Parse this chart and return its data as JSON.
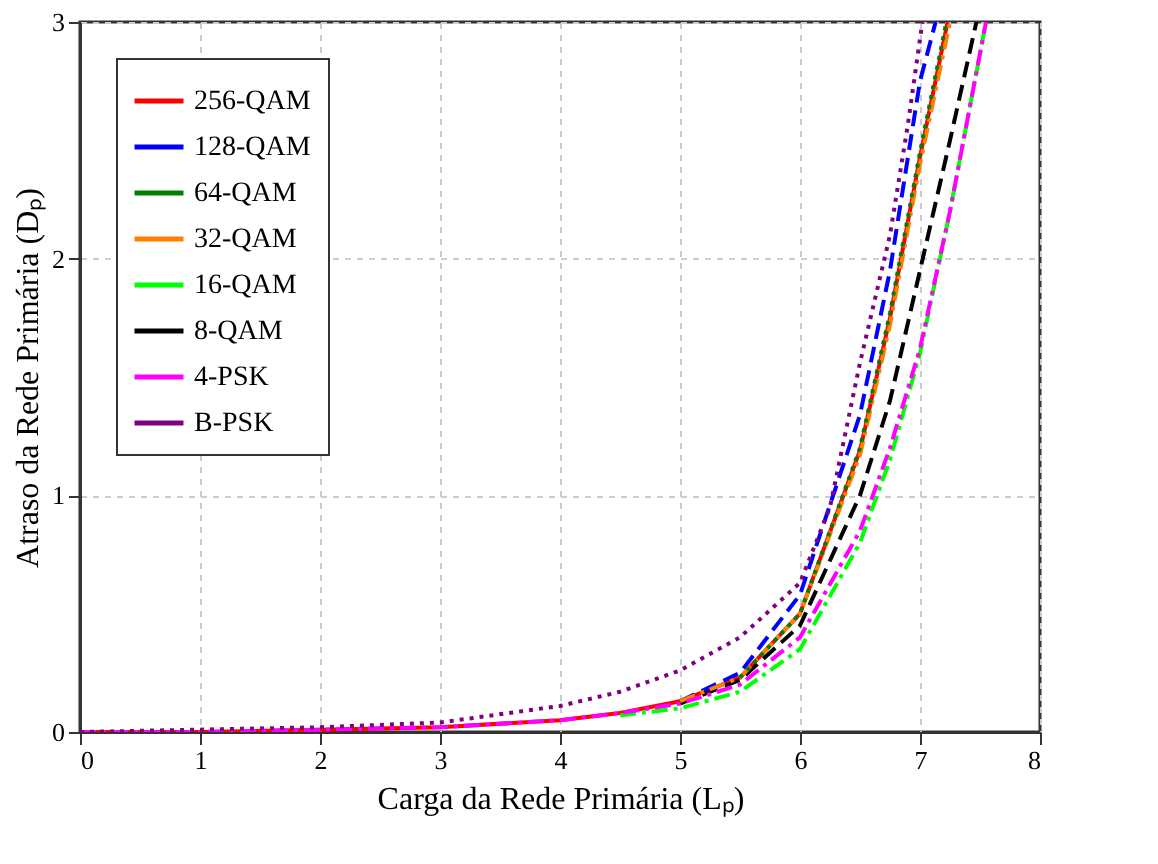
{
  "chart_data": {
    "type": "line",
    "xlabel": "Carga da Rede Primária (Lₚ)",
    "ylabel": "Atraso da Rede Primária (Dₚ)",
    "xlim": [
      0,
      8
    ],
    "xticks": [
      0,
      1,
      2,
      3,
      4,
      5,
      6,
      7,
      8
    ],
    "ylim": [
      0,
      3
    ],
    "yticks": [
      0,
      1,
      2,
      3
    ],
    "grid": true,
    "legend": "top left",
    "marker": "none",
    "series": [
      {
        "name": "256-QAM",
        "color": "#ff0000",
        "line_style": "solid",
        "x": [
          0,
          1,
          2,
          3,
          4,
          4.5,
          5,
          5.5,
          6,
          6.5,
          6.75,
          7,
          7.23
        ],
        "values": [
          0,
          0,
          0.01,
          0.02,
          0.05,
          0.08,
          0.13,
          0.23,
          0.5,
          1.19,
          1.75,
          2.43,
          3
        ]
      },
      {
        "name": "128-QAM",
        "color": "#0000ff",
        "line_style": "dashed",
        "x": [
          5,
          5.5,
          6,
          6.5,
          6.75,
          7,
          7.13
        ],
        "values": [
          0.13,
          0.25,
          0.58,
          1.34,
          1.95,
          2.75,
          3
        ]
      },
      {
        "name": "64-QAM",
        "color": "#008000",
        "line_style": "dotted",
        "x": [
          5.5,
          6,
          6.5,
          6.75,
          7,
          7.22
        ],
        "values": [
          0.23,
          0.5,
          1.2,
          1.77,
          2.45,
          3
        ]
      },
      {
        "name": "32-QAM",
        "color": "#ff8000",
        "line_style": "dashdot",
        "x": [
          5,
          5.5,
          6,
          6.5,
          6.75,
          7,
          7.25
        ],
        "values": [
          0.13,
          0.23,
          0.5,
          1.17,
          1.72,
          2.4,
          3
        ]
      },
      {
        "name": "16-QAM",
        "color": "#00ff00",
        "line_style": "dashdot",
        "x": [
          4.5,
          5,
          5.5,
          6,
          6.5,
          6.75,
          7,
          7.25,
          7.55
        ],
        "values": [
          0.07,
          0.1,
          0.17,
          0.35,
          0.8,
          1.15,
          1.6,
          2.2,
          3
        ]
      },
      {
        "name": "8-QAM",
        "color": "#000000",
        "line_style": "dashed",
        "x": [
          5,
          5.5,
          6,
          6.5,
          6.75,
          7,
          7.25,
          7.47
        ],
        "values": [
          0.12,
          0.22,
          0.45,
          1.0,
          1.4,
          1.95,
          2.5,
          3
        ]
      },
      {
        "name": "4-PSK",
        "color": "#ff00ff",
        "line_style": "dashdot",
        "x": [
          0,
          1,
          2,
          3,
          4,
          4.5,
          5,
          5.5,
          6,
          6.5,
          6.75,
          7,
          7.25,
          7.55
        ],
        "values": [
          0,
          0,
          0.01,
          0.02,
          0.05,
          0.08,
          0.12,
          0.2,
          0.4,
          0.85,
          1.2,
          1.62,
          2.2,
          3
        ]
      },
      {
        "name": "B-PSK",
        "color": "#800080",
        "line_style": "dotted",
        "x": [
          0,
          1,
          2,
          3,
          4,
          4.5,
          5,
          5.5,
          6,
          6.25,
          6.5,
          6.75,
          6.9,
          7.02
        ],
        "values": [
          0,
          0.01,
          0.02,
          0.04,
          0.11,
          0.17,
          0.26,
          0.4,
          0.63,
          0.95,
          1.56,
          2.1,
          2.57,
          3
        ]
      }
    ]
  }
}
